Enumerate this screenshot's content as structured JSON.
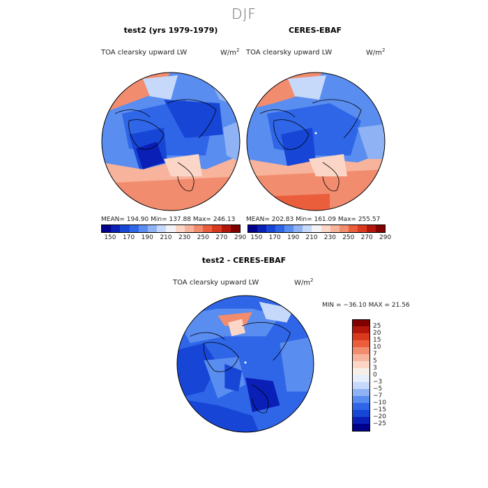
{
  "season": "DJF",
  "panels": [
    {
      "title": "test2 (yrs 1979-1979)",
      "variable": "TOA clearsky upward LW",
      "units": "W/m",
      "units_sup": "2",
      "stats": "MEAN= 194.90   Min= 137.88   Max= 246.13"
    },
    {
      "title": "CERES-EBAF",
      "variable": "TOA clearsky upward LW",
      "units": "W/m",
      "units_sup": "2",
      "stats": "MEAN= 202.83   Min= 161.09   Max= 255.57"
    }
  ],
  "diff": {
    "title": "test2 - CERES-EBAF",
    "variable": "TOA clearsky upward LW",
    "units": "W/m",
    "units_sup": "2",
    "stats": "MIN = −36.10 MAX =  21.56"
  },
  "colorbar_top": {
    "tick_labels": [
      "150",
      "170",
      "190",
      "210",
      "230",
      "250",
      "270",
      "290"
    ],
    "colors": [
      "#00008b",
      "#0a1fb5",
      "#1746d6",
      "#2f66e8",
      "#5a8df0",
      "#8fb2f5",
      "#c7d9fb",
      "#f3f3f7",
      "#fbd6c7",
      "#f7b39b",
      "#f28c6e",
      "#ea5e3c",
      "#d93a1f",
      "#b3170c",
      "#800000"
    ]
  },
  "colorbar_diff": {
    "labels": [
      "25",
      "20",
      "15",
      "10",
      "7",
      "5",
      "3",
      "0",
      "−3",
      "−5",
      "−7",
      "−10",
      "−15",
      "−20",
      "−25"
    ],
    "colors": [
      "#800000",
      "#b3170c",
      "#d93a1f",
      "#ea5e3c",
      "#f28c6e",
      "#f7b39b",
      "#fbd6c7",
      "#f6efe8",
      "#e6eefc",
      "#c7d9fb",
      "#8fb2f5",
      "#5a8df0",
      "#2f66e8",
      "#1746d6",
      "#0a1fb5",
      "#00008b"
    ]
  }
}
